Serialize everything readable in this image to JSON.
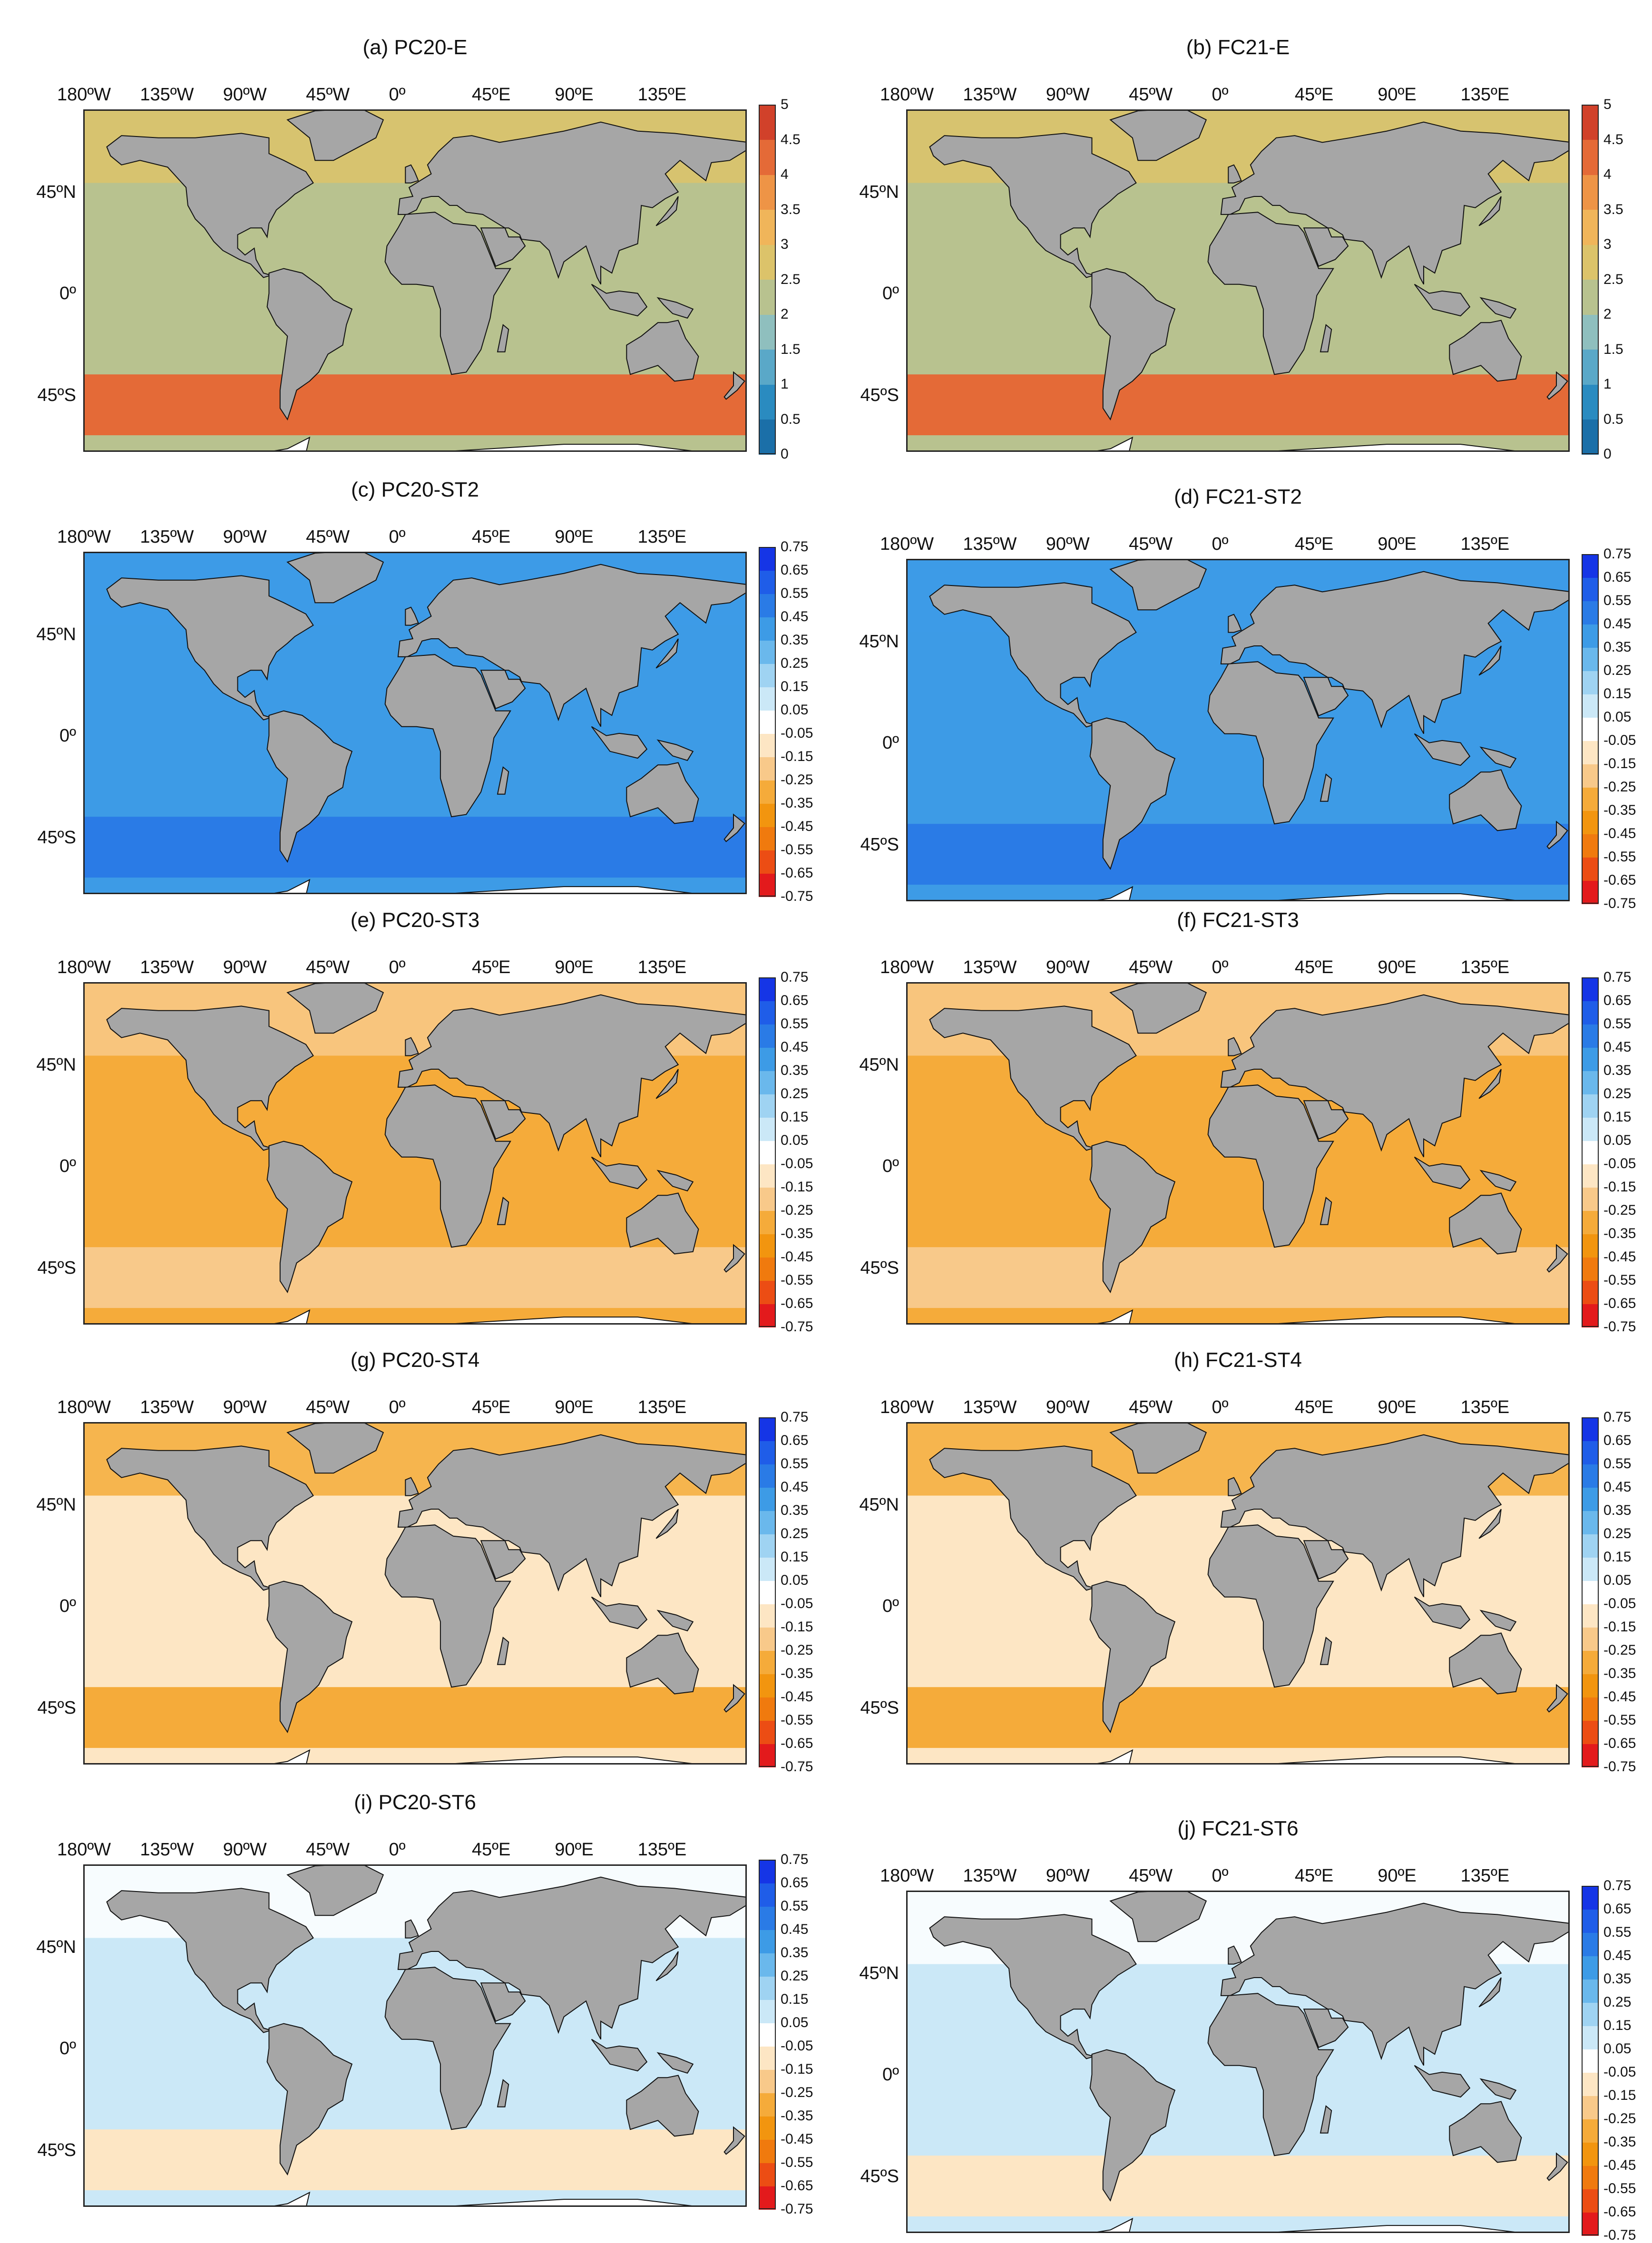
{
  "figure": {
    "lon_ticks": [
      "180ºW",
      "135ºW",
      "90ºW",
      "45ºW",
      "0º",
      "45ºE",
      "90ºE",
      "135ºE"
    ],
    "lat_ticks": [
      "45ºN",
      "0º",
      "45ºS"
    ],
    "colormaps": {
      "E": {
        "ticks": [
          "5",
          "4.5",
          "4",
          "3.5",
          "3",
          "2.5",
          "2",
          "1.5",
          "1",
          "0.5",
          "0"
        ],
        "colors": [
          "#1b6fa8",
          "#2a8bc0",
          "#5aa8c8",
          "#8fbfbe",
          "#b8c28f",
          "#dcc36a",
          "#f0b55a",
          "#ee9446",
          "#e46a37",
          "#d1412a"
        ]
      },
      "ST": {
        "ticks": [
          "0.75",
          "0.65",
          "0.55",
          "0.45",
          "0.35",
          "0.25",
          "0.15",
          "0.05",
          "-0.05",
          "-0.15",
          "-0.25",
          "-0.35",
          "-0.45",
          "-0.55",
          "-0.65",
          "-0.75"
        ],
        "colors": [
          "#e31a1c",
          "#ec4d14",
          "#f07a0e",
          "#f2950f",
          "#f5ab3a",
          "#f8c98a",
          "#fde6c4",
          "#ffffff",
          "#cbe8f7",
          "#9fd3f2",
          "#6ab8ec",
          "#3d9be6",
          "#2a7be6",
          "#1f5de8",
          "#1535e6"
        ]
      }
    },
    "panels": [
      {
        "id": "a",
        "title": "(a) PC20-E",
        "cmap": "E",
        "ocean_color": "#b8c28f",
        "south_color": "#e46a37",
        "north_color": "#dcc36a"
      },
      {
        "id": "b",
        "title": "(b) FC21-E",
        "cmap": "E",
        "ocean_color": "#b8c28f",
        "south_color": "#e46a37",
        "north_color": "#dcc36a"
      },
      {
        "id": "c",
        "title": "(c) PC20-ST2",
        "cmap": "ST",
        "ocean_color": "#3d9be6",
        "south_color": "#2a7be6",
        "north_color": "#3d9be6"
      },
      {
        "id": "d",
        "title": "(d) FC21-ST2",
        "cmap": "ST",
        "ocean_color": "#3d9be6",
        "south_color": "#2a7be6",
        "north_color": "#3d9be6"
      },
      {
        "id": "e",
        "title": "(e) PC20-ST3",
        "cmap": "ST",
        "ocean_color": "#f5ab3a",
        "south_color": "#f8c98a",
        "north_color": "#f8c98a"
      },
      {
        "id": "f",
        "title": "(f) FC21-ST3",
        "cmap": "ST",
        "ocean_color": "#f5ab3a",
        "south_color": "#f8c98a",
        "north_color": "#f8c98a"
      },
      {
        "id": "g",
        "title": "(g) PC20-ST4",
        "cmap": "ST",
        "ocean_color": "#fde6c4",
        "south_color": "#f5ab3a",
        "north_color": "#f5ab3a"
      },
      {
        "id": "h",
        "title": "(h) FC21-ST4",
        "cmap": "ST",
        "ocean_color": "#fde6c4",
        "south_color": "#f5ab3a",
        "north_color": "#f5ab3a"
      },
      {
        "id": "i",
        "title": "(i) PC20-ST6",
        "cmap": "ST",
        "ocean_color": "#cbe8f7",
        "south_color": "#fde6c4",
        "north_color": "#ffffff"
      },
      {
        "id": "j",
        "title": "(j) FC21-ST6",
        "cmap": "ST",
        "ocean_color": "#cbe8f7",
        "south_color": "#fde6c4",
        "north_color": "#ffffff"
      }
    ]
  }
}
